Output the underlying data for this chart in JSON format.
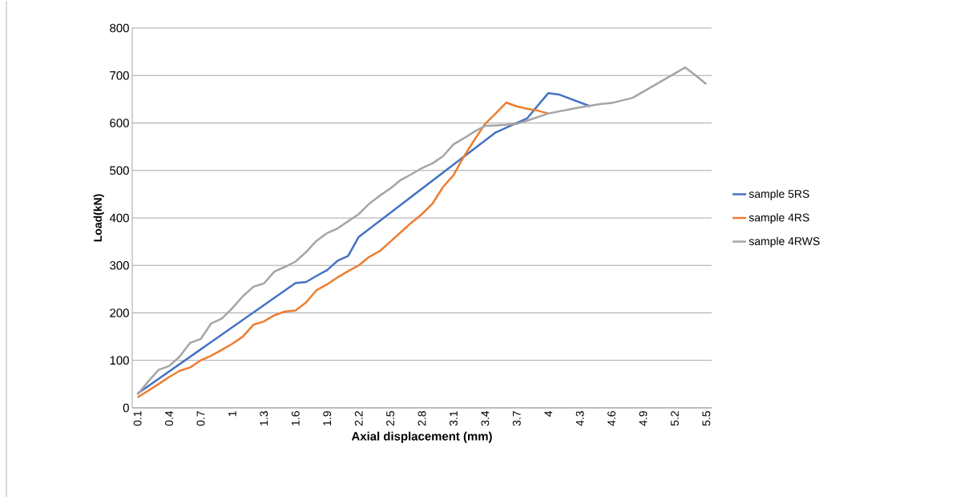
{
  "chart_data": {
    "type": "line",
    "xlabel": "Axial displacement (mm)",
    "ylabel": "Load(kN)",
    "xlim": [
      0.05,
      5.55
    ],
    "xticks": [
      0.1,
      0.4,
      0.7,
      1,
      1.3,
      1.6,
      1.9,
      2.2,
      2.5,
      2.8,
      3.1,
      3.4,
      3.7,
      4,
      4.3,
      4.6,
      4.9,
      5.2,
      5.5
    ],
    "ylim": [
      0,
      800
    ],
    "yticks": [
      0,
      100,
      200,
      300,
      400,
      500,
      600,
      700,
      800
    ],
    "grid": "y",
    "legend": "right",
    "series": [
      {
        "name": "sample 5RS",
        "color": "#4472c4",
        "x": [
          0.1,
          1.6,
          1.7,
          1.8,
          1.9,
          2.0,
          2.1,
          2.2,
          3.5,
          3.6,
          3.8,
          4.0,
          4.1,
          4.4
        ],
        "values": [
          30,
          263,
          265,
          278,
          290,
          310,
          320,
          360,
          580,
          590,
          610,
          663,
          660,
          635
        ]
      },
      {
        "name": "sample 4RS",
        "color": "#ed7d31",
        "x": [
          0.1,
          0.3,
          0.4,
          0.5,
          0.6,
          0.7,
          0.8,
          0.9,
          1.0,
          1.1,
          1.2,
          1.3,
          1.4,
          1.5,
          1.6,
          1.7,
          1.8,
          1.9,
          2.0,
          2.1,
          2.2,
          2.3,
          2.4,
          2.5,
          2.6,
          2.7,
          2.8,
          2.9,
          3.0,
          3.1,
          3.2,
          3.3,
          3.4,
          3.5,
          3.6,
          3.7,
          3.8,
          3.9,
          4.0
        ],
        "values": [
          22,
          50,
          65,
          78,
          85,
          100,
          110,
          122,
          135,
          150,
          175,
          182,
          195,
          203,
          205,
          222,
          248,
          260,
          275,
          288,
          300,
          318,
          330,
          350,
          370,
          390,
          408,
          430,
          465,
          490,
          530,
          565,
          598,
          620,
          643,
          635,
          630,
          626,
          620
        ]
      },
      {
        "name": "sample 4RWS",
        "color": "#a5a5a5",
        "x": [
          0.1,
          0.2,
          0.3,
          0.4,
          0.5,
          0.6,
          0.7,
          0.8,
          0.9,
          1.0,
          1.1,
          1.2,
          1.3,
          1.4,
          1.5,
          1.6,
          1.7,
          1.8,
          1.9,
          2.0,
          2.1,
          2.2,
          2.3,
          2.4,
          2.5,
          2.6,
          2.7,
          2.8,
          2.9,
          3.0,
          3.1,
          3.2,
          3.3,
          3.4,
          3.5,
          3.6,
          3.7,
          3.8,
          4.0,
          4.3,
          4.5,
          4.6,
          4.8,
          5.3,
          5.4,
          5.5
        ],
        "values": [
          28,
          55,
          80,
          88,
          108,
          137,
          145,
          178,
          188,
          210,
          235,
          255,
          262,
          287,
          297,
          308,
          328,
          352,
          368,
          378,
          393,
          408,
          430,
          447,
          462,
          480,
          492,
          505,
          515,
          530,
          555,
          568,
          582,
          594,
          595,
          596,
          598,
          605,
          620,
          633,
          640,
          642,
          653,
          717,
          700,
          682
        ]
      }
    ]
  }
}
